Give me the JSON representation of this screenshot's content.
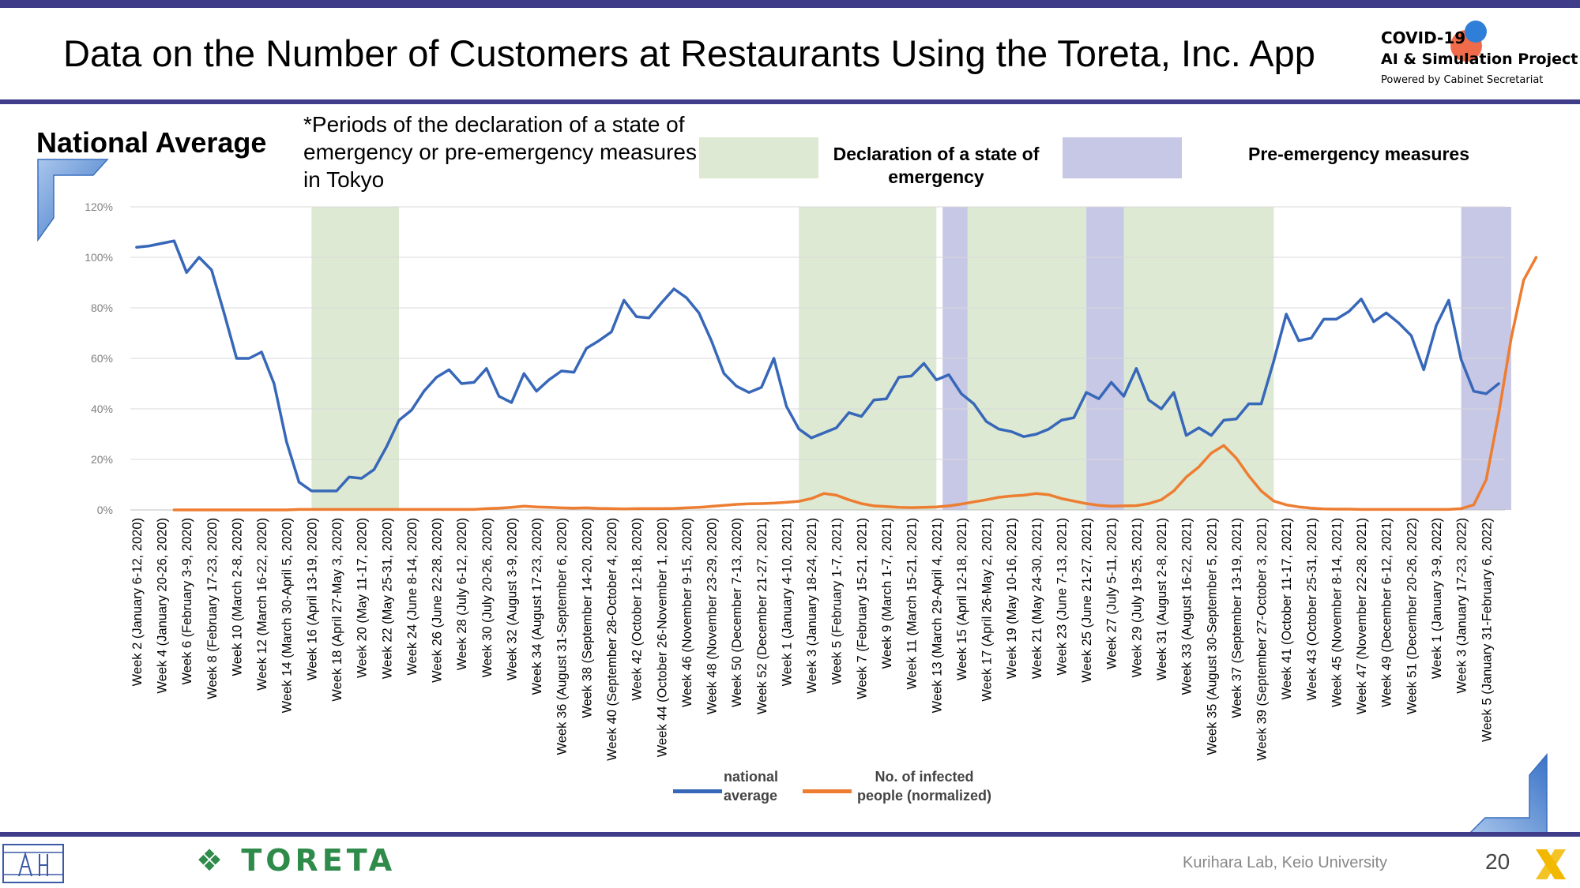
{
  "title": "Data on the Number of Customers at Restaurants Using the Toreta, Inc. App",
  "brand": {
    "line1": "COVID-19",
    "line2": "AI & Simulation Project",
    "line3": "Powered by Cabinet Secretariat"
  },
  "subtitle": "National Average",
  "note": "*Periods of the declaration of a state of emergency or pre-emergency measures in Tokyo",
  "period_legend": {
    "emergency": "Declaration of a state of emergency",
    "pre_emergency": "Pre-emergency measures"
  },
  "footer": {
    "company_logo": "TORETA",
    "credit": "Kurihara Lab, Keio University",
    "page_number": "20"
  },
  "colors": {
    "national": "#3767b8",
    "infected": "#ed7d31",
    "emergency": "#dde9d2",
    "pre_emergency": "#c7c7e6",
    "accent": "#3f3d8a"
  },
  "chart_data": {
    "type": "line",
    "ylim": [
      0,
      120
    ],
    "yticks": [
      "0%",
      "20%",
      "40%",
      "60%",
      "80%",
      "100%",
      "120%"
    ],
    "grid": true,
    "legend_position": "bottom-center",
    "x_tick_labels": [
      "Week 2 (January 6-12, 2020)",
      "Week 4 (January 20-26, 2020)",
      "Week 6 (February 3-9, 2020)",
      "Week 8 (February 17-23, 2020)",
      "Week 10 (March 2-8, 2020)",
      "Week 12 (March 16-22, 2020)",
      "Week 14 (March 30-April 5, 2020)",
      "Week 16 (April 13-19, 2020)",
      "Week 18 (April 27-May 3, 2020)",
      "Week 20 (May 11-17, 2020)",
      "Week 22 (May 25-31, 2020)",
      "Week 24 (June 8-14, 2020)",
      "Week 26 (June 22-28, 2020)",
      "Week 28 (July 6-12, 2020)",
      "Week 30 (July 20-26, 2020)",
      "Week 32 (August 3-9, 2020)",
      "Week 34 (August 17-23, 2020)",
      "Week 36 (August 31-September 6, 2020)",
      "Week 38 (September 14-20, 2020)",
      "Week 40 (September 28-October 4, 2020)",
      "Week 42 (October 12-18, 2020)",
      "Week 44 (October 26-November 1, 2020)",
      "Week 46 (November 9-15, 2020)",
      "Week 48 (November 23-29, 2020)",
      "Week 50 (December 7-13, 2020)",
      "Week 52 (December 21-27, 2021)",
      "Week 1 (January 4-10, 2021)",
      "Week 3 (January 18-24, 2021)",
      "Week 5 (February 1-7, 2021)",
      "Week 7 (February 15-21, 2021)",
      "Week 9 (March 1-7, 2021)",
      "Week 11 (March 15-21, 2021)",
      "Week 13 (March 29-April 4, 2021)",
      "Week 15 (April 12-18, 2021)",
      "Week 17 (April 26-May 2, 2021)",
      "Week 19 (May 10-16, 2021)",
      "Week 21 (May 24-30, 2021)",
      "Week 23 (June 7-13, 2021)",
      "Week 25 (June 21-27, 2021)",
      "Week 27 (July 5-11, 2021)",
      "Week 29 (July 19-25, 2021)",
      "Week 31 (August 2-8, 2021)",
      "Week 33 (August 16-22, 2021)",
      "Week 35 (August 30-September 5, 2021)",
      "Week 37 (September 13-19, 2021)",
      "Week 39 (September 27-October 3, 2021)",
      "Week 41 (October 11-17, 2021)",
      "Week 43 (October 25-31, 2021)",
      "Week 45 (November 8-14, 2021)",
      "Week 47 (November 22-28, 2021)",
      "Week 49 (December 6-12, 2021)",
      "Week 51 (December 20-26, 2022)",
      "Week 1 (January 3-9, 2022)",
      "Week 3 (January 17-23, 2022)",
      "Week 5 (January 31-February 6, 2022)"
    ],
    "x_week_index": [
      1,
      3,
      5,
      7,
      9,
      11,
      13,
      15,
      17,
      19,
      21,
      23,
      25,
      27,
      29,
      31,
      33,
      35,
      37,
      39,
      41,
      43,
      45,
      47,
      49,
      51,
      53,
      55,
      57,
      59,
      61,
      63,
      65,
      67,
      69,
      71,
      73,
      75,
      77,
      79,
      81,
      83,
      85,
      87,
      89,
      91,
      93,
      95,
      97,
      99,
      101,
      103,
      105,
      107,
      109
    ],
    "emergency_periods": [
      [
        14.5,
        21.5
      ],
      [
        53.5,
        64.5
      ],
      [
        67,
        76.5
      ],
      [
        79.5,
        91.5
      ]
    ],
    "pre_emergency_periods": [
      [
        65,
        67
      ],
      [
        76.5,
        79.5
      ],
      [
        106.5,
        110.5
      ]
    ],
    "series": [
      {
        "name": "national average",
        "start_week": 1,
        "values": [
          104,
          104.5,
          105.5,
          106.5,
          94,
          100,
          95,
          78,
          60,
          60,
          62.5,
          50,
          27,
          11,
          7.5,
          7.5,
          7.5,
          13,
          12.5,
          16,
          25,
          35.5,
          39.5,
          47,
          52.5,
          55.5,
          50,
          50.5,
          56,
          45,
          42.5,
          54,
          47,
          51.5,
          55,
          54.5,
          64,
          67,
          70.5,
          83,
          76.5,
          76,
          82,
          87.5,
          84,
          78,
          67,
          54,
          49,
          46.5,
          48.5,
          60,
          41,
          32,
          28.5,
          30.5,
          32.5,
          38.5,
          37,
          43.5,
          44,
          52.5,
          53,
          58,
          51.5,
          53.5,
          46,
          42,
          35,
          32,
          31,
          29,
          30,
          32,
          35.5,
          36.5,
          46.5,
          44,
          50.5,
          45,
          56,
          43.5,
          40,
          46.5,
          29.5,
          32.5,
          29.5,
          35.5,
          36,
          42,
          42,
          59,
          77.5,
          67,
          68,
          75.5,
          75.5,
          78.5,
          83.5,
          74.5,
          78,
          74,
          69,
          55.5,
          73,
          83,
          59.5,
          47,
          46,
          50
        ]
      },
      {
        "name": "No. of infected people (normalized)",
        "start_week": 4,
        "values": [
          0,
          0,
          0,
          0,
          0,
          0,
          0,
          0,
          0,
          0,
          0.2,
          0.2,
          0.2,
          0.2,
          0.2,
          0.2,
          0.2,
          0.2,
          0.2,
          0.2,
          0.2,
          0.2,
          0.2,
          0.2,
          0.2,
          0.5,
          0.7,
          1,
          1.5,
          1.2,
          1,
          0.8,
          0.7,
          0.8,
          0.6,
          0.5,
          0.4,
          0.5,
          0.5,
          0.5,
          0.6,
          0.8,
          1,
          1.4,
          1.8,
          2.2,
          2.4,
          2.5,
          2.7,
          3,
          3.4,
          4.5,
          6.5,
          5.8,
          4,
          2.5,
          1.6,
          1.3,
          1,
          0.9,
          1,
          1.2,
          1.6,
          2.3,
          3.2,
          4,
          5,
          5.5,
          5.8,
          6.5,
          6,
          4.5,
          3.5,
          2.5,
          1.8,
          1.5,
          1.6,
          1.7,
          2.5,
          4,
          7.5,
          13,
          17,
          22.5,
          25.5,
          20.5,
          13.5,
          7.5,
          3.5,
          2,
          1.2,
          0.7,
          0.4,
          0.3,
          0.3,
          0.2,
          0.2,
          0.2,
          0.2,
          0.2,
          0.2,
          0.2,
          0.2,
          0.5,
          2,
          12,
          38,
          68,
          91,
          100
        ]
      }
    ]
  }
}
